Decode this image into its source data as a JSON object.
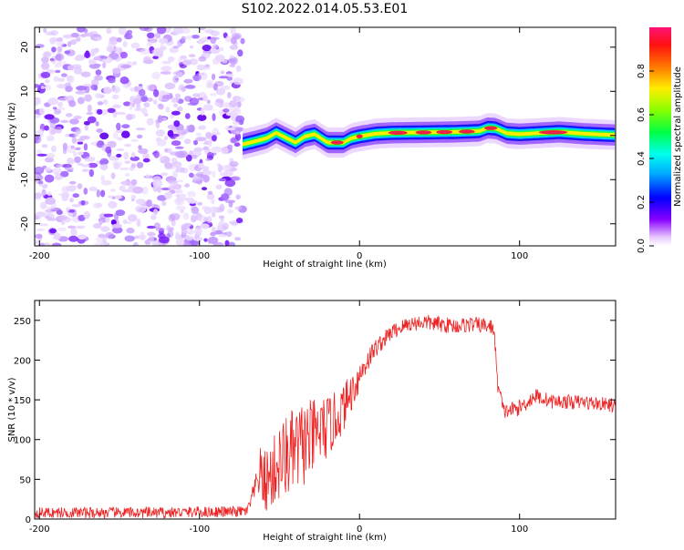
{
  "title": "S102.2022.014.05.53.E01",
  "chart_data": [
    {
      "type": "heatmap",
      "xlabel": "Height of straight line (km)",
      "ylabel": "Frequency (Hz)",
      "xlim": [
        -203,
        160
      ],
      "ylim": [
        -25,
        24.5
      ],
      "xticks": [
        -200,
        -100,
        0,
        100
      ],
      "yticks": [
        -20,
        -10,
        0,
        10,
        20
      ],
      "noise_region_x": [
        -203,
        -73
      ],
      "ridge": {
        "x": [
          -73,
          -65,
          -58,
          -52,
          -46,
          -40,
          -34,
          -28,
          -20,
          -10,
          -5,
          0,
          10,
          20,
          40,
          60,
          75,
          80,
          85,
          92,
          100,
          110,
          125,
          140,
          160
        ],
        "y": [
          -2,
          -1.3,
          -0.6,
          0.6,
          -0.5,
          -1.6,
          -0.2,
          0.3,
          -1.6,
          -1.6,
          -0.6,
          -0.2,
          0.4,
          0.6,
          0.7,
          0.8,
          1,
          1.7,
          1.6,
          0.5,
          0.3,
          0.5,
          0.8,
          0.4,
          0.1
        ]
      },
      "colorbar": {
        "label": "Normalized spectral amplitude",
        "ticks": [
          0.0,
          0.2,
          0.4,
          0.6,
          0.8
        ],
        "range": [
          0,
          1
        ]
      }
    },
    {
      "type": "line",
      "xlabel": "Height of straight line (km)",
      "ylabel": "SNR (10 * v/v)",
      "xlim": [
        -203,
        160
      ],
      "ylim": [
        0,
        275
      ],
      "xticks": [
        -200,
        -100,
        0,
        100
      ],
      "yticks": [
        0,
        50,
        100,
        150,
        200,
        250
      ],
      "series": [
        {
          "color": "#ee2222",
          "x": [
            -203,
            -180,
            -160,
            -140,
            -120,
            -100,
            -80,
            -70,
            -65,
            -62,
            -60,
            -55,
            -50,
            -45,
            -40,
            -35,
            -30,
            -25,
            -20,
            -15,
            -10,
            -5,
            0,
            5,
            10,
            20,
            30,
            40,
            50,
            60,
            70,
            80,
            84,
            86,
            90,
            100,
            110,
            120,
            140,
            160
          ],
          "y": [
            8,
            8,
            8,
            8,
            8,
            9,
            9,
            10,
            40,
            60,
            45,
            55,
            70,
            80,
            85,
            95,
            100,
            110,
            115,
            125,
            140,
            160,
            180,
            200,
            215,
            235,
            245,
            248,
            245,
            243,
            245,
            243,
            240,
            175,
            135,
            140,
            155,
            148,
            147,
            143
          ],
          "noise": [
            7,
            7,
            7,
            7,
            7,
            7,
            7,
            7,
            15,
            30,
            40,
            45,
            50,
            55,
            55,
            55,
            50,
            45,
            40,
            35,
            30,
            25,
            20,
            15,
            12,
            10,
            10,
            10,
            10,
            10,
            10,
            10,
            10,
            12,
            10,
            10,
            10,
            9,
            9,
            9
          ]
        }
      ]
    }
  ]
}
